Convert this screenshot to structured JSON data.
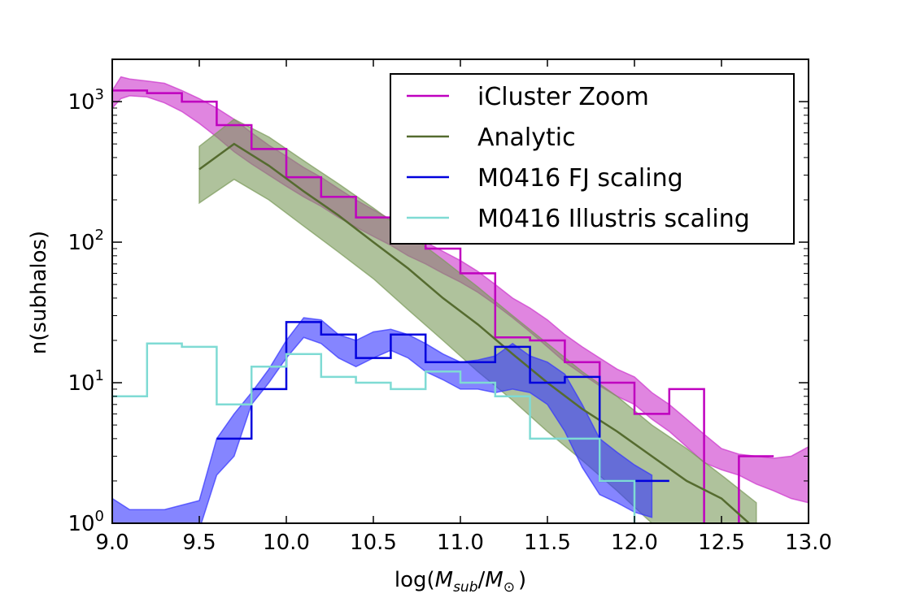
{
  "chart_data": {
    "type": "line",
    "title": "",
    "xlabel": "log(M_sub/M_⊙)",
    "xlabel_parts": {
      "prefix": "log(",
      "m": "M",
      "sub": "sub",
      "slash": "/",
      "m2": "M",
      "sun": "⊙",
      "suffix": ")"
    },
    "ylabel": "n(subhalos)",
    "yscale": "log",
    "xlim": [
      9.0,
      13.0
    ],
    "ylim": [
      1,
      2000
    ],
    "xticks": [
      {
        "value": 9.0,
        "label": "9.0"
      },
      {
        "value": 9.5,
        "label": "9.5"
      },
      {
        "value": 10.0,
        "label": "10.0"
      },
      {
        "value": 10.5,
        "label": "10.5"
      },
      {
        "value": 11.0,
        "label": "11.0"
      },
      {
        "value": 11.5,
        "label": "11.5"
      },
      {
        "value": 12.0,
        "label": "12.0"
      },
      {
        "value": 12.5,
        "label": "12.5"
      },
      {
        "value": 13.0,
        "label": "13.0"
      }
    ],
    "yticks": [
      {
        "value": 1,
        "base": "10",
        "exp": "0"
      },
      {
        "value": 10,
        "base": "10",
        "exp": "1"
      },
      {
        "value": 100,
        "base": "10",
        "exp": "2"
      },
      {
        "value": 1000,
        "base": "10",
        "exp": "3"
      }
    ],
    "legend": {
      "position": "upper-right"
    },
    "series": [
      {
        "name": "iCluster Zoom",
        "color": "#bf00bf",
        "band_color": "#cc33cc",
        "style": "step",
        "band_x": [
          9.0,
          9.05,
          9.1,
          9.2,
          9.3,
          9.4,
          9.5,
          9.6,
          9.7,
          9.8,
          9.9,
          10.0,
          10.1,
          10.2,
          10.3,
          10.4,
          10.5,
          10.6,
          10.7,
          10.8,
          10.9,
          11.0,
          11.1,
          11.2,
          11.3,
          11.4,
          11.5,
          11.6,
          11.7,
          11.8,
          11.9,
          12.0,
          12.1,
          12.2,
          12.3,
          12.4,
          12.5,
          12.6,
          12.7,
          12.8,
          12.9,
          13.0
        ],
        "band_lower": [
          900,
          1050,
          1100,
          1080,
          980,
          850,
          700,
          560,
          440,
          360,
          300,
          250,
          210,
          180,
          150,
          128,
          110,
          95,
          80,
          70,
          60,
          52,
          44,
          36,
          29,
          23,
          18,
          14,
          11.5,
          9.5,
          8,
          7,
          5.5,
          4.5,
          3.5,
          2.7,
          2.4,
          2.2,
          1.9,
          1.7,
          1.5,
          1.4
        ],
        "band_upper": [
          1200,
          1500,
          1450,
          1400,
          1350,
          1200,
          1050,
          900,
          750,
          600,
          490,
          410,
          340,
          290,
          240,
          200,
          170,
          145,
          120,
          100,
          86,
          74,
          62,
          50,
          40,
          34,
          28,
          22,
          18,
          15,
          12.5,
          11,
          8.5,
          7,
          5.5,
          4.3,
          3.4,
          3.1,
          3.0,
          2.9,
          3.0,
          3.5
        ],
        "step_edges": [
          9.0,
          9.2,
          9.4,
          9.6,
          9.8,
          10.0,
          10.2,
          10.4,
          10.6,
          10.8,
          11.0,
          11.2,
          11.4,
          11.6,
          11.8,
          12.0,
          12.2,
          12.4,
          12.6,
          12.8
        ],
        "step_values": [
          1200,
          1150,
          1000,
          680,
          460,
          290,
          210,
          150,
          148,
          90,
          60,
          21,
          20,
          14,
          10,
          6,
          9,
          0.9,
          3
        ]
      },
      {
        "name": "Analytic",
        "color": "#556b2f",
        "band_color": "#7a9a5a",
        "style": "line",
        "band_x": [
          9.5,
          9.7,
          9.9,
          10.1,
          10.3,
          10.5,
          10.7,
          10.9,
          11.1,
          11.3,
          11.5,
          11.7,
          11.9,
          12.1,
          12.3,
          12.5,
          12.7
        ],
        "band_lower": [
          190,
          280,
          200,
          130,
          85,
          55,
          33,
          20,
          12,
          7.5,
          4.5,
          2.8,
          1.7,
          1.0,
          0.6,
          0.35,
          0.2
        ],
        "band_upper": [
          480,
          750,
          560,
          380,
          260,
          175,
          115,
          75,
          48,
          30,
          19,
          12,
          8,
          5,
          3.4,
          2.2,
          1.4
        ],
        "line_x": [
          9.5,
          9.7,
          9.9,
          10.1,
          10.3,
          10.5,
          10.7,
          10.9,
          11.1,
          11.3,
          11.5,
          11.7,
          11.9,
          12.1,
          12.3,
          12.5,
          12.7
        ],
        "line_y": [
          330,
          500,
          350,
          230,
          155,
          100,
          65,
          40,
          26,
          16,
          10,
          6.5,
          4.5,
          3.0,
          2.0,
          1.5,
          0.9
        ]
      },
      {
        "name": "M0416 FJ scaling",
        "color": "#0000dd",
        "band_color": "#3333ff",
        "style": "step",
        "band_x": [
          9.0,
          9.1,
          9.3,
          9.5,
          9.6,
          9.7,
          9.8,
          9.9,
          10.0,
          10.1,
          10.2,
          10.3,
          10.4,
          10.5,
          10.6,
          10.7,
          10.8,
          10.9,
          11.0,
          11.1,
          11.2,
          11.3,
          11.4,
          11.5,
          11.6,
          11.7,
          11.8,
          11.9,
          12.0,
          12.1
        ],
        "band_lower": [
          0.9,
          0.9,
          0.9,
          0.9,
          2.2,
          3.0,
          7.0,
          10.0,
          15,
          21,
          19,
          15,
          13,
          15,
          17,
          15,
          12,
          10.5,
          9,
          9,
          8.5,
          9,
          8.5,
          7,
          4.5,
          2.5,
          1.6,
          1.4,
          1.2,
          1.1
        ],
        "band_upper": [
          1.5,
          1.25,
          1.25,
          1.45,
          4.0,
          6.0,
          8.5,
          12.5,
          20,
          29,
          28,
          22,
          20,
          23,
          24,
          22,
          19,
          16,
          14,
          14.5,
          15.5,
          19,
          15.5,
          14,
          11.5,
          7,
          4.0,
          3.2,
          2.6,
          2.2
        ],
        "step_edges": [
          9.6,
          9.8,
          10.0,
          10.2,
          10.4,
          10.6,
          10.8,
          11.0,
          11.2,
          11.4,
          11.6,
          11.8,
          12.0,
          12.2
        ],
        "step_values": [
          4,
          9,
          27,
          22,
          15,
          22,
          14,
          14,
          18,
          10,
          11,
          2,
          2
        ]
      },
      {
        "name": "M0416 Illustris scaling",
        "color": "#7fdbd4",
        "style": "step",
        "step_edges": [
          9.0,
          9.2,
          9.4,
          9.6,
          9.8,
          10.0,
          10.2,
          10.4,
          10.6,
          10.8,
          11.0,
          11.2,
          11.4,
          11.6,
          11.8,
          12.0,
          12.2
        ],
        "step_values": [
          8,
          19,
          18,
          7,
          13,
          16,
          11,
          10,
          9,
          12,
          10,
          8,
          4,
          4,
          2,
          0.8
        ]
      }
    ]
  }
}
